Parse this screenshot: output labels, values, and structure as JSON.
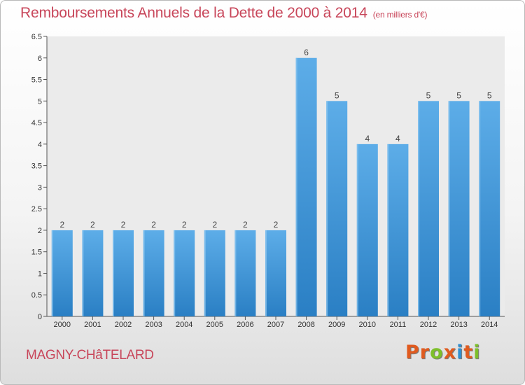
{
  "header": {
    "title": "Remboursements Annuels de la Dette de 2000 à 2014",
    "subtitle": "(en milliers d'€)"
  },
  "footer": {
    "town": "MAGNY-CHâTELARD",
    "logo": "Proxiti"
  },
  "colors": {
    "title": "#c8465a",
    "bar_top": "#5dade8",
    "bar_bottom": "#2a7fc4",
    "logo_letters": [
      "#e05a1e",
      "#e05a1e",
      "#7dbf2a",
      "#e05a1e",
      "#2f8fd0",
      "#e05a1e",
      "#7dbf2a"
    ]
  },
  "chart_data": {
    "type": "bar",
    "title": "Remboursements Annuels de la Dette de 2000 à 2014",
    "subtitle": "(en milliers d'€)",
    "categories": [
      "2000",
      "2001",
      "2002",
      "2003",
      "2004",
      "2005",
      "2006",
      "2007",
      "2008",
      "2009",
      "2010",
      "2011",
      "2012",
      "2013",
      "2014"
    ],
    "values": [
      2,
      2,
      2,
      2,
      2,
      2,
      2,
      2,
      6,
      5,
      4,
      4,
      5,
      5,
      5
    ],
    "data_labels": [
      "2",
      "2",
      "2",
      "2",
      "2",
      "2",
      "2",
      "2",
      "6",
      "5",
      "4",
      "4",
      "5",
      "5",
      "5"
    ],
    "ylim": [
      0,
      6.5
    ],
    "yticks": [
      0,
      0.5,
      1,
      1.5,
      2,
      2.5,
      3,
      3.5,
      4,
      4.5,
      5,
      5.5,
      6,
      6.5
    ],
    "yticklabels": [
      "0",
      "0.5",
      "1",
      "1.5",
      "2",
      "2.5",
      "3",
      "3.5",
      "4",
      "4.5",
      "5",
      "5.5",
      "6",
      "6.5"
    ],
    "xlabel": "",
    "ylabel": "",
    "grid": false,
    "legend": "none"
  }
}
